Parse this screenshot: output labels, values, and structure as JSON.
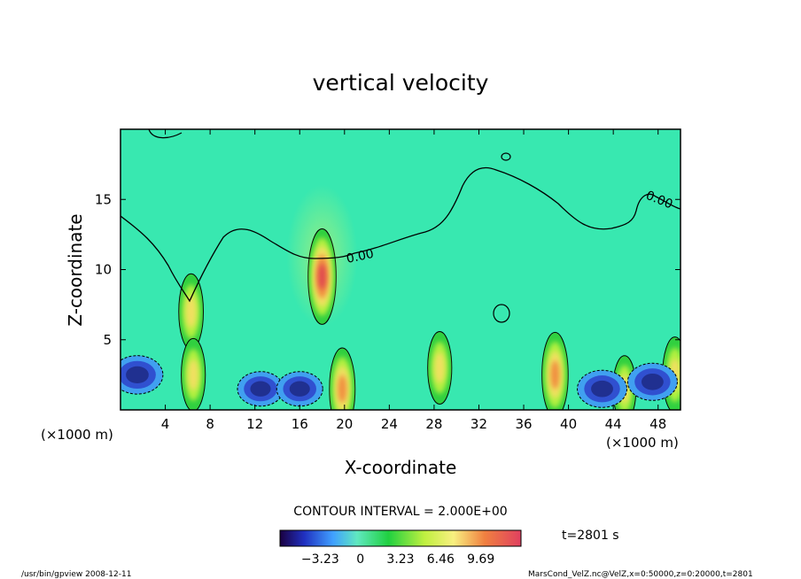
{
  "chart_data": {
    "type": "heatmap",
    "title": "vertical velocity",
    "xlabel": "X-coordinate",
    "ylabel": "Z-coordinate",
    "x_unit_left": "(×1000 m)",
    "x_unit_right": "(×1000 m)",
    "xlim": [
      0,
      50
    ],
    "ylim": [
      0,
      20
    ],
    "x_ticks": [
      4,
      8,
      12,
      16,
      20,
      24,
      28,
      32,
      36,
      40,
      44,
      48
    ],
    "y_ticks": [
      5,
      10,
      15
    ],
    "contour_labels": [
      "0.00",
      "0.00"
    ],
    "contour_interval_text": "CONTOUR INTERVAL = 2.000E+00",
    "time_text": "t=2801 s",
    "colorbar": {
      "ticks": [
        -3.23,
        0,
        3.23,
        6.46,
        9.69
      ],
      "tick_labels": [
        "−3.23",
        "0",
        "3.23",
        "6.46",
        "9.69"
      ]
    },
    "features": [
      {
        "x": 18.0,
        "z": 9.5,
        "w": 9.69,
        "kind": "updraft"
      },
      {
        "x": 6.3,
        "z": 7.0,
        "w": 6.5,
        "kind": "updraft"
      },
      {
        "x": 6.5,
        "z": 2.5,
        "w": 6.0,
        "kind": "updraft"
      },
      {
        "x": 19.8,
        "z": 1.5,
        "w": 7.5,
        "kind": "updraft"
      },
      {
        "x": 38.8,
        "z": 2.5,
        "w": 8.0,
        "kind": "updraft"
      },
      {
        "x": 28.5,
        "z": 3.0,
        "w": 6.0,
        "kind": "updraft"
      },
      {
        "x": 49.5,
        "z": 2.5,
        "w": 6.5,
        "kind": "updraft"
      },
      {
        "x": 45.0,
        "z": 1.5,
        "w": 5.0,
        "kind": "updraft"
      },
      {
        "x": 1.5,
        "z": 2.5,
        "w": -3.23,
        "kind": "downdraft"
      },
      {
        "x": 12.5,
        "z": 1.5,
        "w": -2.5,
        "kind": "downdraft"
      },
      {
        "x": 16.0,
        "z": 1.5,
        "w": -2.5,
        "kind": "downdraft"
      },
      {
        "x": 43.0,
        "z": 1.5,
        "w": -3.0,
        "kind": "downdraft"
      },
      {
        "x": 47.5,
        "z": 2.0,
        "w": -3.0,
        "kind": "downdraft"
      }
    ]
  },
  "footer": {
    "left": "/usr/bin/gpview   2008-12-11",
    "right": "MarsCond_VelZ.nc@VelZ,x=0:50000,z=0:20000,t=2801"
  }
}
